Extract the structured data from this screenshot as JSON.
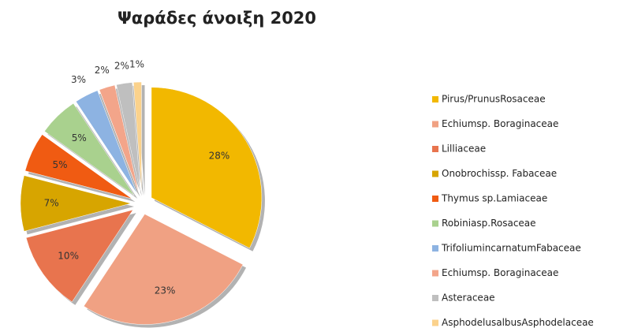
{
  "chart_data": {
    "type": "pie",
    "title": "Ψαράδες άνοιξη 2020",
    "categories": [
      "Pirus/PrunusRosaceae",
      "Echiumsp. Boraginaceae",
      "Lilliaceae",
      "Onobrochissp.  Fabaceae",
      "Thymus sp.Lamiaceae",
      "Robiniasp.Rosaceae",
      "TrifoliumincarnatumFabaceae",
      "Echiumsp. Boraginaceae",
      "Asteraceae",
      "AsphodelusalbusAsphodelaceae"
    ],
    "values": [
      28,
      23,
      10,
      7,
      5,
      5,
      3,
      2,
      2,
      1
    ],
    "value_labels": [
      "28%",
      "23%",
      "10%",
      "7%",
      "5%",
      "5%",
      "3%",
      "2%",
      "2%",
      "1%"
    ],
    "colors": [
      "#f2b800",
      "#f0a183",
      "#e8744e",
      "#d7a500",
      "#f05b12",
      "#a9d18e",
      "#8db3e2",
      "#f3a58a",
      "#bfbfbf",
      "#fbd28c"
    ],
    "legend": "right"
  }
}
